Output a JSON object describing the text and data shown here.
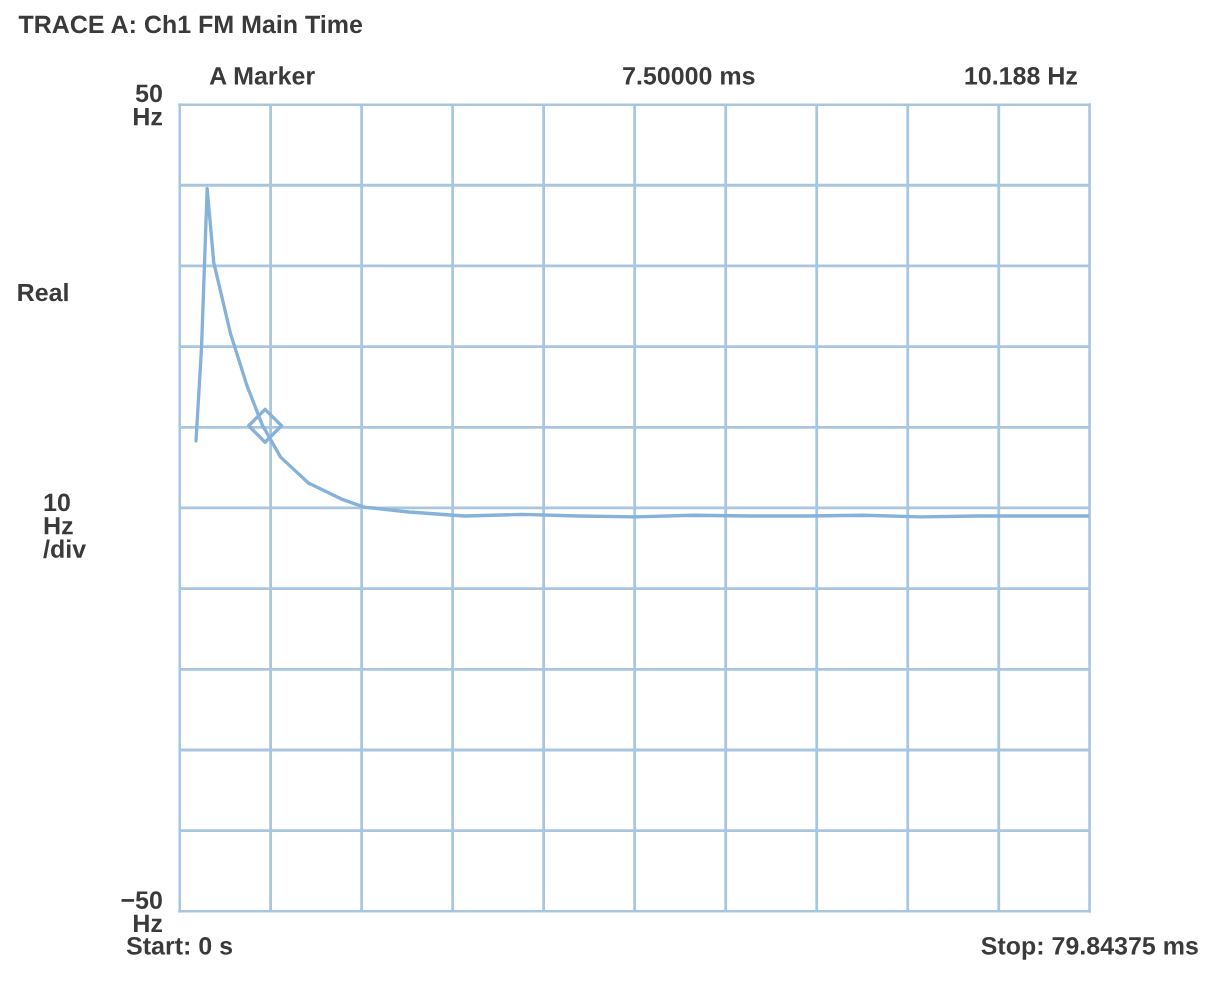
{
  "chart_data": {
    "type": "line",
    "title": "TRACE A: Ch1 FM Main Time",
    "ylabel": "Real",
    "annotations": [
      "A Marker",
      "7.50000 ms",
      "10.188 Hz",
      "10\nHz\n/div"
    ],
    "series": [
      {
        "color": "#86b2da",
        "x": [
          1.44,
          1.93,
          2.42,
          3.0,
          4.47,
          5.93,
          7.25,
          8.86,
          11.3,
          14.2,
          16.2,
          20.1,
          25,
          30,
          35,
          40,
          45,
          50,
          55,
          60,
          65,
          70,
          75,
          79.8
        ],
        "values": [
          8.3,
          20,
          39.6,
          30.4,
          21.6,
          15.1,
          10.3,
          6.3,
          3.1,
          1.1,
          0.1,
          -0.5,
          -1,
          -0.8,
          -1,
          -1.1,
          -0.9,
          -1,
          -1,
          -0.9,
          -1.1,
          -1,
          -1,
          -1
        ]
      },
      {
        "type": "scatter",
        "color": "#86b2da",
        "marker": "diamond",
        "x": [
          7.5
        ],
        "values": [
          10.188
        ]
      }
    ],
    "xlim": [
      0,
      79.84375
    ],
    "xticks": [
      {
        "value": 0,
        "label": "Start: 0 s"
      },
      {
        "value": 7.984375,
        "label": null
      },
      {
        "value": 15.96875,
        "label": null
      },
      {
        "value": 23.953125,
        "label": null
      },
      {
        "value": 31.9375,
        "label": null
      },
      {
        "value": 39.921875,
        "label": null
      },
      {
        "value": 47.90625,
        "label": null
      },
      {
        "value": 55.890625,
        "label": null
      },
      {
        "value": 63.875,
        "label": null
      },
      {
        "value": 71.859375,
        "label": null
      },
      {
        "value": 79.84375,
        "label": "Stop: 79.84375 ms"
      }
    ],
    "ylim": [
      -50,
      50
    ],
    "yticks": [
      {
        "value": -50,
        "label": "−50\nHz"
      },
      {
        "value": -40,
        "label": null
      },
      {
        "value": -30,
        "label": null
      },
      {
        "value": -20,
        "label": null
      },
      {
        "value": -10,
        "label": null
      },
      {
        "value": 0,
        "label": null
      },
      {
        "value": 10,
        "label": null
      },
      {
        "value": 20,
        "label": null
      },
      {
        "value": 30,
        "label": null
      },
      {
        "value": 40,
        "label": null
      },
      {
        "value": 50,
        "label": "50\nHz"
      }
    ],
    "grid": true
  }
}
